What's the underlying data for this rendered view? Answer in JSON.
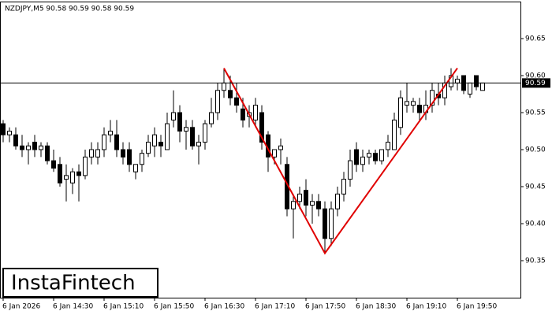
{
  "chart_data": {
    "type": "candlestick",
    "title": "NZDJPY,M5  90.58 90.59 90.58 90.59",
    "categories": [
      "6 Jan 2026",
      null,
      null,
      null,
      null,
      null,
      null,
      null,
      "6 Jan 14:30",
      null,
      null,
      null,
      null,
      null,
      null,
      null,
      "6 Jan 15:10",
      null,
      null,
      null,
      null,
      null,
      null,
      null,
      "6 Jan 15:50",
      null,
      null,
      null,
      null,
      null,
      null,
      null,
      "6 Jan 16:30",
      null,
      null,
      null,
      null,
      null,
      null,
      null,
      "6 Jan 17:10",
      null,
      null,
      null,
      null,
      null,
      null,
      null,
      "6 Jan 17:50",
      null,
      null,
      null,
      null,
      null,
      null,
      null,
      "6 Jan 18:30",
      null,
      null,
      null,
      null,
      null,
      null,
      null,
      "6 Jan 19:10",
      null,
      null,
      null,
      null,
      null,
      null,
      null,
      "6 Jan 19:50",
      null,
      null,
      null,
      null
    ],
    "open": [
      90.535,
      90.52,
      90.52,
      90.505,
      90.5,
      90.51,
      90.5,
      90.505,
      90.485,
      90.48,
      90.46,
      90.455,
      90.47,
      90.465,
      90.49,
      90.49,
      90.5,
      90.52,
      90.52,
      90.5,
      90.5,
      90.47,
      90.48,
      90.495,
      90.505,
      90.51,
      90.5,
      90.54,
      90.55,
      90.525,
      90.53,
      90.505,
      90.51,
      90.535,
      90.55,
      90.58,
      90.58,
      90.57,
      90.555,
      90.545,
      90.54,
      90.55,
      90.52,
      90.49,
      90.5,
      90.48,
      90.42,
      90.43,
      90.445,
      90.425,
      90.43,
      90.42,
      90.38,
      90.42,
      90.44,
      90.46,
      90.5,
      90.48,
      90.49,
      90.495,
      90.485,
      90.5,
      90.5,
      90.53,
      90.56,
      90.56,
      90.56,
      90.55,
      90.56,
      90.575,
      90.57,
      90.585,
      90.59,
      90.6,
      90.575,
      90.6,
      90.58
    ],
    "high": [
      90.54,
      90.53,
      90.53,
      90.52,
      90.51,
      90.52,
      90.51,
      90.51,
      90.5,
      90.49,
      90.48,
      90.475,
      90.48,
      90.5,
      90.51,
      90.51,
      90.53,
      90.54,
      90.54,
      90.51,
      90.51,
      90.48,
      90.5,
      90.52,
      90.53,
      90.52,
      90.55,
      90.58,
      90.56,
      90.54,
      90.54,
      90.52,
      90.54,
      90.57,
      90.59,
      90.61,
      90.6,
      90.59,
      90.57,
      90.56,
      90.57,
      90.56,
      90.525,
      90.5,
      90.515,
      90.49,
      90.44,
      90.45,
      90.46,
      90.44,
      90.44,
      90.43,
      90.43,
      90.45,
      90.47,
      90.5,
      90.51,
      90.5,
      90.5,
      90.5,
      90.5,
      90.52,
      90.55,
      90.58,
      90.59,
      90.57,
      90.57,
      90.58,
      90.59,
      90.59,
      90.6,
      90.61,
      90.6,
      90.6,
      90.59,
      90.6,
      90.59
    ],
    "low": [
      90.51,
      90.51,
      90.5,
      90.49,
      90.48,
      90.49,
      90.49,
      90.48,
      90.47,
      90.45,
      90.43,
      90.44,
      90.43,
      90.46,
      90.48,
      90.48,
      90.49,
      90.51,
      90.49,
      90.48,
      90.47,
      90.46,
      90.47,
      90.49,
      90.49,
      90.49,
      90.5,
      90.53,
      90.51,
      90.5,
      90.5,
      90.48,
      90.5,
      90.53,
      90.54,
      90.57,
      90.56,
      90.55,
      90.53,
      90.53,
      90.53,
      90.5,
      90.47,
      90.48,
      90.48,
      90.41,
      90.38,
      90.42,
      90.41,
      90.4,
      90.41,
      90.36,
      90.37,
      90.41,
      90.43,
      90.45,
      90.47,
      90.47,
      90.48,
      90.48,
      90.48,
      90.49,
      90.5,
      90.52,
      90.55,
      90.55,
      90.54,
      90.54,
      90.55,
      90.56,
      90.56,
      90.58,
      90.58,
      90.575,
      90.57,
      90.58,
      90.58
    ],
    "close": [
      90.52,
      90.525,
      90.505,
      90.5,
      90.505,
      90.5,
      90.505,
      90.485,
      90.475,
      90.455,
      90.465,
      90.47,
      90.465,
      90.49,
      90.5,
      90.5,
      90.52,
      90.525,
      90.5,
      90.49,
      90.48,
      90.48,
      90.495,
      90.51,
      90.52,
      90.505,
      90.535,
      90.55,
      90.525,
      90.53,
      90.505,
      90.51,
      90.535,
      90.55,
      90.58,
      90.59,
      90.57,
      90.56,
      90.54,
      90.55,
      90.56,
      90.51,
      90.49,
      90.5,
      90.505,
      90.42,
      90.43,
      90.44,
      90.425,
      90.43,
      90.42,
      90.38,
      90.42,
      90.44,
      90.46,
      90.485,
      90.48,
      90.49,
      90.495,
      90.485,
      90.5,
      90.51,
      90.54,
      90.57,
      90.565,
      90.565,
      90.55,
      90.56,
      90.58,
      90.57,
      90.59,
      90.6,
      90.595,
      90.58,
      90.59,
      90.585,
      90.59
    ],
    "up_color": "#ffffff",
    "down_color": "#000000",
    "ylim": [
      90.3,
      90.7
    ],
    "yticks": [
      90.35,
      {
        "value": 90.4,
        "label": "90.40"
      },
      90.45,
      {
        "value": 90.5,
        "label": "90.50"
      },
      90.55,
      {
        "value": 90.6,
        "label": "90.60"
      },
      90.65
    ],
    "price_line": {
      "value": 90.59,
      "label": "90.59"
    },
    "pattern": {
      "color": "#e00000",
      "x": [
        35,
        51,
        72
      ],
      "y": [
        90.61,
        90.36,
        90.61
      ]
    },
    "logo": "InstaFintech"
  }
}
